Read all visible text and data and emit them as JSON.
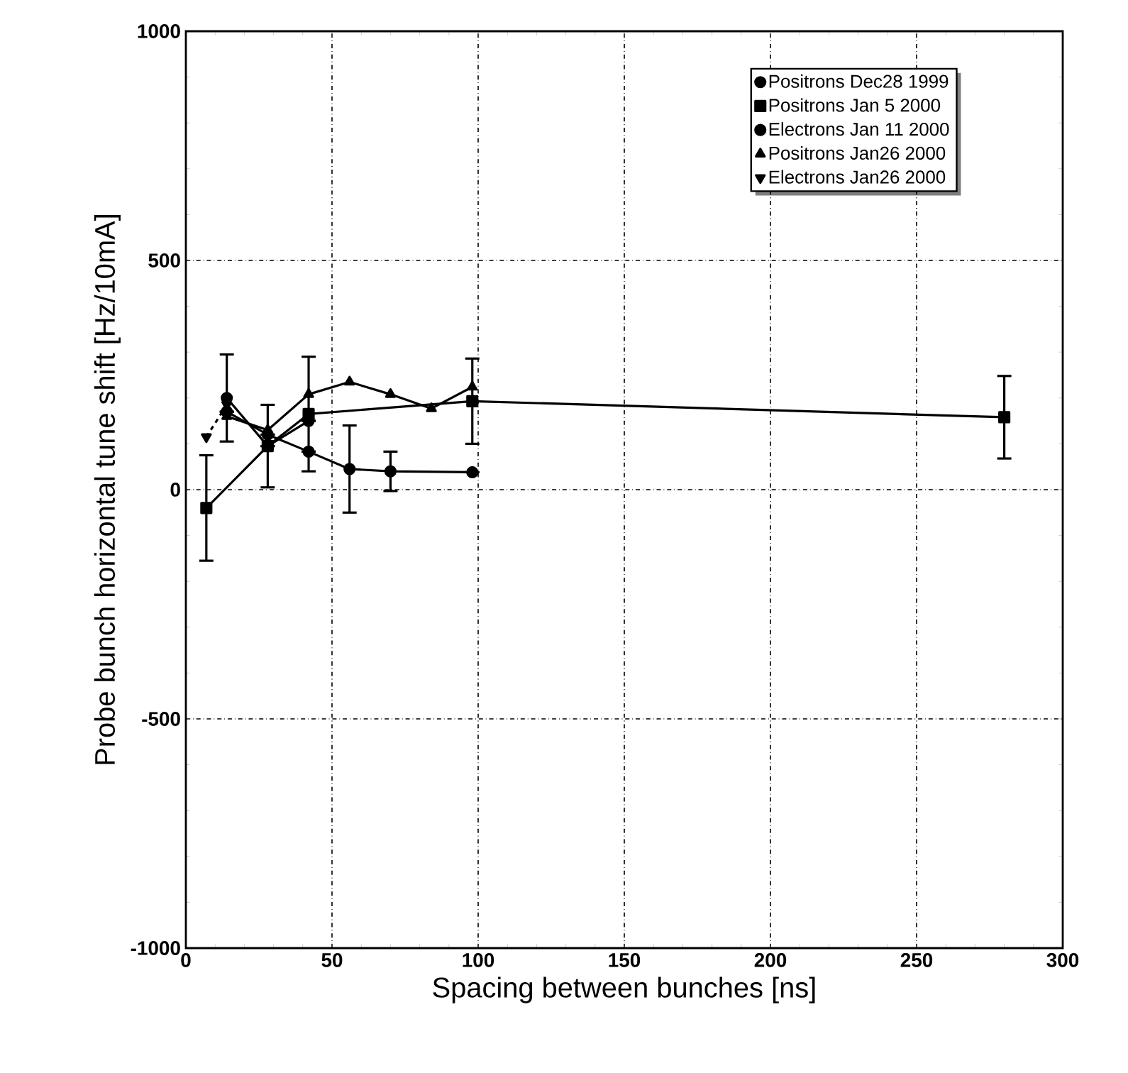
{
  "chart_data": {
    "type": "line",
    "xlabel": "Spacing between  bunches [ns]",
    "ylabel": "Probe bunch  horizontal tune shift  [Hz/10mA]",
    "xlim": [
      0,
      300
    ],
    "xticks": [
      0,
      50,
      100,
      150,
      200,
      250,
      300
    ],
    "ylim": [
      -1000,
      1000
    ],
    "yticks": [
      -1000,
      -500,
      0,
      500,
      1000
    ],
    "grid": true,
    "legend": "top right",
    "series": [
      {
        "name": "Positrons Dec28 1999",
        "color": "#000000",
        "marker": "circle",
        "x": [
          14,
          28,
          42
        ],
        "values": [
          200,
          95,
          150
        ],
        "errors": [
          95,
          null,
          null
        ]
      },
      {
        "name": "Positrons Jan 5 2000",
        "color": "#000000",
        "marker": "square",
        "x": [
          7,
          28,
          42,
          98,
          280
        ],
        "values": [
          -40,
          95,
          165,
          193,
          158
        ],
        "errors": [
          115,
          90,
          125,
          93,
          90
        ]
      },
      {
        "name": "Electrons Jan 11 2000",
        "color": "#000000",
        "marker": "circle",
        "x": [
          14,
          28,
          42,
          56,
          70,
          98
        ],
        "values": [
          170,
          120,
          83,
          45,
          40,
          38
        ],
        "errors": [
          null,
          null,
          null,
          95,
          43,
          null
        ]
      },
      {
        "name": "Positrons Jan26 2000",
        "color": "#000000",
        "marker": "triangle",
        "x": [
          14,
          28,
          42,
          56,
          70,
          84,
          98
        ],
        "values": [
          160,
          130,
          208,
          235,
          208,
          177,
          224
        ]
      },
      {
        "name": "Electrons Jan26 2000",
        "color": "#000000",
        "marker": "triangle-down",
        "line_style": "dashed",
        "x": [
          7,
          14
        ],
        "values": [
          115,
          185
        ]
      }
    ]
  }
}
